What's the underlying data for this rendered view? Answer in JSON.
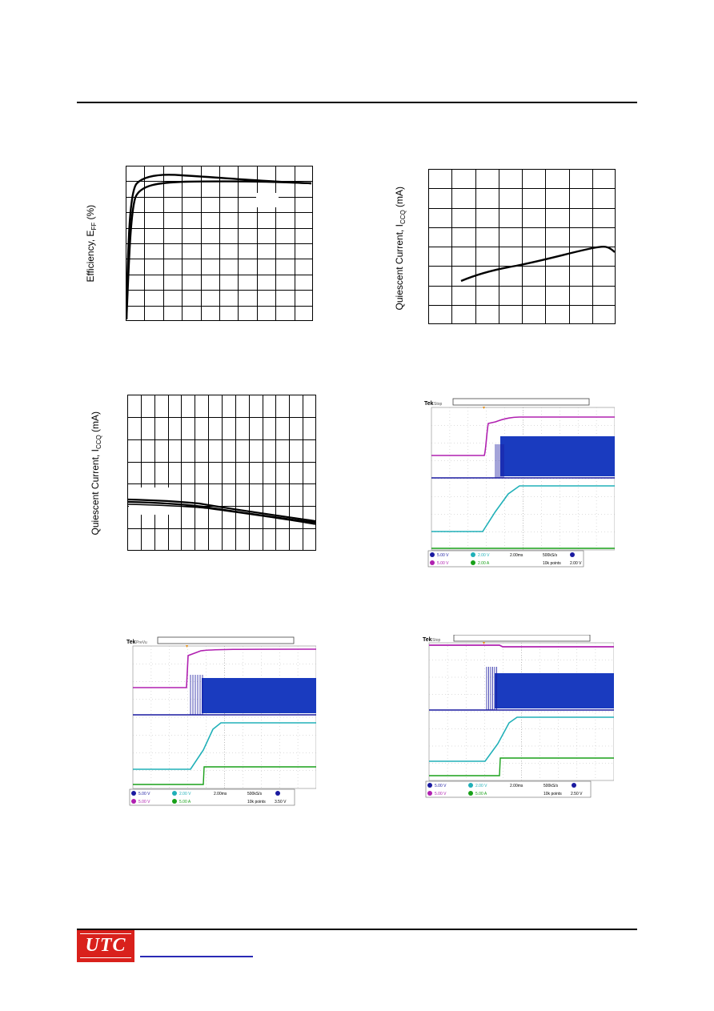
{
  "logo": {
    "text": "UTC",
    "brand_color": "#d9211c"
  },
  "charts": {
    "efficiency": {
      "ylabel": "Efficiency, E",
      "ylabel_sub": "FF",
      "ylabel_unit": " (%)"
    },
    "quiescent_1": {
      "ylabel": "Quiescent Current, I",
      "ylabel_sub": "CCQ",
      "ylabel_unit": " (mA)"
    },
    "quiescent_2": {
      "ylabel": "Quiescent Current, I",
      "ylabel_sub": "CCQ",
      "ylabel_unit": " (mA)"
    }
  },
  "scopes": {
    "scope_1": {
      "brand": "Tek",
      "mode": "Stop",
      "readout_row1": [
        "5.00 V",
        "2.00 V",
        "2.00ms",
        "500kS/s",
        "2.00 V"
      ],
      "readout_row2": [
        "5.00 V",
        "2.00 A",
        "",
        "10k points",
        "2.00 V"
      ]
    },
    "scope_2": {
      "brand": "Tek",
      "mode": "PreVu",
      "readout_row1": [
        "5.00 V",
        "2.00 V",
        "2.00ms",
        "500kS/s",
        "3.50 V"
      ],
      "readout_row2": [
        "5.00 V",
        "5.00 A",
        "",
        "10k points",
        "3.50 V"
      ]
    },
    "scope_3": {
      "brand": "Tek",
      "mode": "Stop",
      "readout_row1": [
        "5.00 V",
        "2.00 V",
        "2.00ms",
        "500kS/s",
        "2.50 V"
      ],
      "readout_row2": [
        "5.00 V",
        "5.00 A",
        "",
        "10k points",
        "2.50 V"
      ]
    }
  },
  "colors": {
    "ch1": "#1a1aa0",
    "ch2": "#ffffff",
    "ch3": "#b020b0",
    "ch4": "#20b0b8",
    "ch5": "#18a018",
    "trigger": "#e89010"
  }
}
